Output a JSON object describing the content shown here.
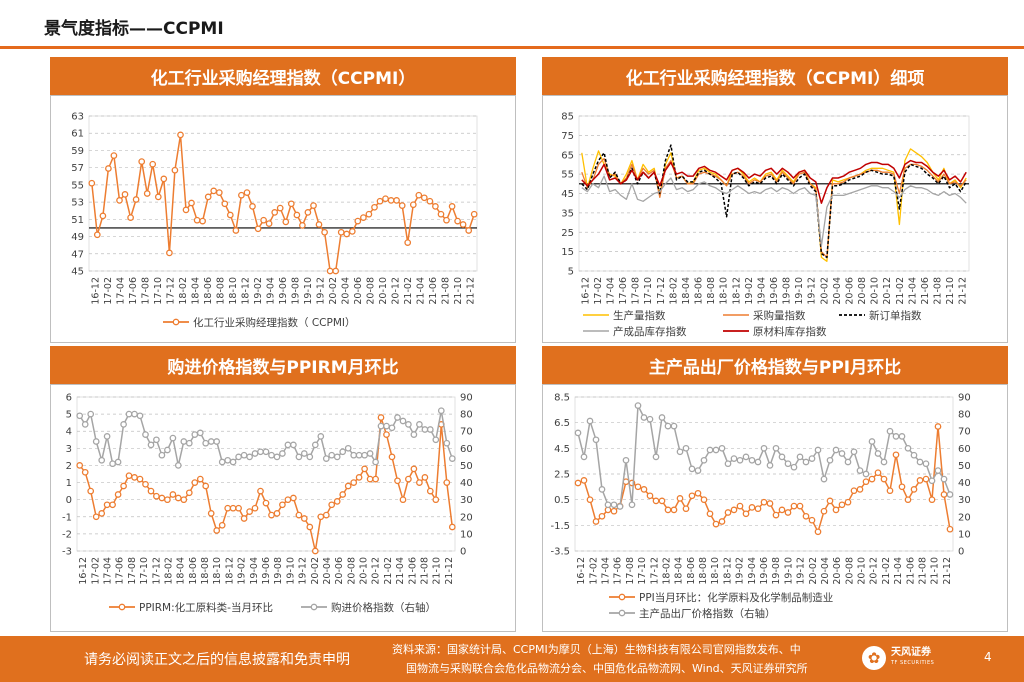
{
  "header": {
    "title": "景气度指标——CCPMI"
  },
  "footer": {
    "disclaimer": "请务必阅读正文之后的信息披露和免责申明",
    "source_line1": "资料来源：国家统计局、CCPMI为摩贝（上海）生物科技有限公司官网指数发布、中",
    "source_line2": "国物流与采购联合会危化品物流分会、中国危化品物流网、Wind、天风证券研究所",
    "logo_text": "天风证券",
    "logo_sub": "TF SECURITIES",
    "page_number": "4"
  },
  "colors": {
    "accent": "#e0701e",
    "orange_line": "#ed7d31",
    "gray_line": "#a5a5a5",
    "yellow_line": "#ffc000",
    "dark_red": "#c00000",
    "black": "#000000"
  },
  "month_ticks": [
    "16-12",
    "17-02",
    "17-04",
    "17-06",
    "17-08",
    "17-10",
    "17-12",
    "18-02",
    "18-04",
    "18-06",
    "18-08",
    "18-10",
    "18-12",
    "19-02",
    "19-04",
    "19-06",
    "19-08",
    "19-10",
    "19-12",
    "20-02",
    "20-04",
    "20-06",
    "20-08",
    "20-10",
    "20-12",
    "21-02",
    "21-04",
    "21-06",
    "21-08",
    "21-10",
    "21-12"
  ],
  "chart_data": [
    {
      "type": "line",
      "title": "化工行业采购经理指数（CCPMI）",
      "ylim": [
        45,
        63
      ],
      "yticks": [
        45,
        47,
        49,
        51,
        53,
        55,
        57,
        59,
        61,
        63
      ],
      "reference_line": 50,
      "legend": [
        {
          "label": "化工行业采购经理指数（ CCPMI）",
          "style": "orange-marker"
        }
      ],
      "series": [
        {
          "name": "化工行业采购经理指数（ CCPMI）",
          "values": [
            55.2,
            49.2,
            51.4,
            56.9,
            58.4,
            53.2,
            53.9,
            51.2,
            53.3,
            57.7,
            54,
            57.4,
            53.6,
            55.7,
            47.1,
            56.7,
            60.8,
            52.1,
            52.9,
            50.9,
            50.8,
            53.6,
            54.3,
            54.1,
            52.8,
            51.5,
            49.7,
            53.8,
            54.1,
            52.5,
            49.9,
            50.9,
            50.5,
            51.8,
            52.3,
            50.7,
            52.8,
            51.5,
            50.3,
            51.8,
            52.6,
            50.4,
            49.5,
            45,
            45,
            49.5,
            49.3,
            49.6,
            50.8,
            51.2,
            51.6,
            52.4,
            53.1,
            53.4,
            53.2,
            53.2,
            52.6,
            48.3,
            52.7,
            53.8,
            53.5,
            53.1,
            52.5,
            51.6,
            50.9,
            52.5,
            50.8,
            50.4,
            49.7,
            51.6
          ]
        }
      ]
    },
    {
      "type": "line",
      "title": "化工行业采购经理指数（CCPMI）细项",
      "ylim": [
        5,
        85
      ],
      "yticks": [
        5,
        15,
        25,
        35,
        45,
        55,
        65,
        75,
        85
      ],
      "reference_line": 50,
      "legend": [
        {
          "label": "生产量指数",
          "style": "yellow"
        },
        {
          "label": "采购量指数",
          "style": "orange"
        },
        {
          "label": "新订单指数",
          "style": "black-dash"
        },
        {
          "label": "产成品库存指数",
          "style": "gray"
        },
        {
          "label": "原材料库存指数",
          "style": "darkred"
        }
      ],
      "series": [
        {
          "name": "生产量指数",
          "values": [
            66,
            48,
            58,
            67,
            60,
            55,
            54,
            50,
            55,
            62,
            52,
            60,
            56,
            58,
            44,
            60,
            66,
            53,
            54,
            50,
            51,
            57,
            58,
            56,
            55,
            52,
            49,
            57,
            58,
            55,
            51,
            53,
            51,
            55,
            56,
            52,
            57,
            54,
            51,
            56,
            57,
            50,
            48,
            12,
            10,
            52,
            51,
            52,
            53,
            54,
            55,
            57,
            58,
            58,
            58,
            57,
            56,
            29,
            62,
            68,
            66,
            64,
            61,
            56,
            52,
            58,
            50,
            52,
            48,
            53
          ]
        },
        {
          "name": "采购量指数",
          "values": [
            56,
            48,
            52,
            60,
            63,
            54,
            55,
            50,
            53,
            60,
            52,
            58,
            55,
            57,
            43,
            58,
            62,
            53,
            54,
            50,
            50,
            55,
            56,
            55,
            54,
            52,
            49,
            55,
            56,
            54,
            50,
            52,
            51,
            54,
            55,
            51,
            56,
            53,
            50,
            55,
            56,
            50,
            47,
            15,
            12,
            50,
            50,
            51,
            53,
            54,
            55,
            56,
            57,
            57,
            56,
            56,
            55,
            45,
            58,
            60,
            60,
            59,
            57,
            54,
            51,
            55,
            50,
            51,
            49,
            52
          ]
        },
        {
          "name": "新订单指数",
          "values": [
            50,
            47,
            55,
            62,
            66,
            53,
            56,
            50,
            52,
            58,
            50,
            56,
            53,
            56,
            45,
            62,
            70,
            52,
            54,
            51,
            51,
            56,
            57,
            55,
            53,
            50,
            33,
            55,
            56,
            53,
            49,
            51,
            50,
            53,
            54,
            50,
            55,
            52,
            49,
            53,
            55,
            49,
            46,
            14,
            12,
            49,
            49,
            50,
            52,
            53,
            54,
            56,
            57,
            56,
            55,
            55,
            54,
            37,
            56,
            60,
            59,
            58,
            55,
            53,
            50,
            54,
            48,
            50,
            46,
            51
          ]
        },
        {
          "name": "产成品库存指数",
          "values": [
            48,
            46,
            50,
            48,
            54,
            46,
            47,
            44,
            42,
            50,
            42,
            41,
            43,
            45,
            46,
            50,
            53,
            47,
            48,
            46,
            47,
            50,
            51,
            49,
            48,
            46,
            45,
            47,
            49,
            47,
            45,
            46,
            45,
            47,
            48,
            46,
            48,
            47,
            45,
            47,
            48,
            45,
            44,
            18,
            38,
            44,
            44,
            44,
            45,
            46,
            47,
            48,
            49,
            49,
            48,
            48,
            46,
            43,
            47,
            49,
            48,
            48,
            47,
            45,
            44,
            46,
            44,
            45,
            43,
            40
          ]
        },
        {
          "name": "原材料库存指数",
          "values": [
            52,
            49,
            52,
            55,
            60,
            52,
            53,
            50,
            52,
            57,
            52,
            56,
            53,
            56,
            49,
            57,
            61,
            55,
            56,
            54,
            54,
            58,
            59,
            57,
            56,
            54,
            52,
            57,
            58,
            56,
            53,
            55,
            54,
            57,
            58,
            55,
            58,
            56,
            53,
            56,
            57,
            53,
            51,
            40,
            48,
            53,
            53,
            54,
            56,
            57,
            58,
            60,
            61,
            61,
            60,
            60,
            58,
            53,
            60,
            62,
            61,
            61,
            59,
            56,
            54,
            57,
            52,
            54,
            51,
            56
          ]
        }
      ]
    },
    {
      "type": "line",
      "title": "购进价格指数与PPIRM月环比",
      "ylim": [
        -3,
        6
      ],
      "yticks": [
        -3,
        -2,
        -1,
        0,
        1,
        2,
        3,
        4,
        5,
        6
      ],
      "y2lim": [
        0,
        90
      ],
      "y2ticks": [
        0,
        10,
        20,
        30,
        40,
        50,
        60,
        70,
        80,
        90
      ],
      "legend": [
        {
          "label": "PPIRM:化工原料类-当月环比",
          "style": "orange-marker"
        },
        {
          "label": "购进价格指数（右轴）",
          "style": "gray-marker"
        }
      ],
      "series": [
        {
          "name": "PPIRM:化工原料类-当月环比",
          "axis": "left",
          "values": [
            2,
            1.6,
            0.5,
            -1,
            -0.8,
            -0.3,
            -0.3,
            0.3,
            0.8,
            1.4,
            1.3,
            1.2,
            0.9,
            0.5,
            0.2,
            0.1,
            0,
            0.3,
            0.1,
            0,
            0.4,
            1,
            1.2,
            0.8,
            -0.8,
            -1.8,
            -1.5,
            -0.5,
            -0.5,
            -0.5,
            -1.1,
            -0.7,
            -0.5,
            0.5,
            -0.2,
            -0.9,
            -0.8,
            -0.3,
            0,
            0.1,
            -0.9,
            -1.1,
            -1.6,
            -3,
            -1,
            -0.9,
            -0.3,
            -0.1,
            0.3,
            0.8,
            1,
            1.3,
            1.8,
            1.2,
            1.2,
            4.8,
            3.8,
            2.5,
            1.1,
            0,
            1.2,
            1.8,
            1,
            1.3,
            0.5,
            0,
            4.4,
            1,
            -1.6
          ]
        },
        {
          "name": "购进价格指数（右轴）",
          "axis": "right",
          "values": [
            79,
            74,
            80,
            64,
            53,
            67,
            51,
            52,
            74,
            80,
            80,
            79,
            68,
            62,
            65,
            56,
            59,
            66,
            50,
            64,
            63,
            68,
            69,
            63,
            64,
            64,
            52,
            53,
            52,
            55,
            56,
            55,
            57,
            58,
            58,
            56,
            55,
            57,
            62,
            62,
            55,
            57,
            55,
            62,
            67,
            54,
            56,
            55,
            58,
            60,
            56,
            56,
            56,
            57,
            52,
            73,
            73,
            72,
            78,
            76,
            74,
            68,
            74,
            71,
            71,
            65,
            82,
            63,
            54
          ]
        }
      ]
    },
    {
      "type": "line",
      "title": "主产品出厂价格指数与PPI月环比",
      "ylim": [
        -3.5,
        8.5
      ],
      "yticks": [
        -3.5,
        -1.5,
        0.5,
        2.5,
        4.5,
        6.5,
        8.5
      ],
      "y2lim": [
        0,
        90
      ],
      "y2ticks": [
        0,
        10,
        20,
        30,
        40,
        50,
        60,
        70,
        80,
        90
      ],
      "legend": [
        {
          "label": "PPI当月环比：化学原料及化学制品制造业",
          "style": "orange-marker"
        },
        {
          "label": "主产品出厂价格指数（右轴）",
          "style": "gray-marker"
        }
      ],
      "series": [
        {
          "name": "PPI当月环比：化学原料及化学制品制造业",
          "axis": "left",
          "values": [
            1.8,
            2,
            0.5,
            -1.2,
            -0.8,
            -0.3,
            -0.4,
            0,
            1.9,
            1.8,
            1.5,
            1.3,
            0.8,
            0.4,
            0.4,
            -0.3,
            -0.3,
            0.6,
            -0.2,
            0.8,
            1,
            0.5,
            -0.6,
            -1.4,
            -1.2,
            -0.5,
            -0.3,
            0,
            -0.6,
            -0.1,
            -0.2,
            0.3,
            0.2,
            -0.7,
            -0.3,
            -0.5,
            0,
            0,
            -0.8,
            -1.1,
            -2,
            -0.4,
            0.4,
            -0.3,
            0.1,
            0.3,
            1.2,
            1.3,
            1.9,
            2.1,
            2.6,
            2.1,
            1.2,
            4,
            1.5,
            0.5,
            1.3,
            2,
            2.1,
            0.5,
            6.2,
            0.9,
            -1.8
          ]
        },
        {
          "name": "主产品出厂价格指数（右轴）",
          "axis": "right",
          "values": [
            69,
            55,
            76,
            65,
            36,
            27,
            27,
            26,
            53,
            27,
            85,
            78,
            77,
            55,
            78,
            73,
            73,
            58,
            60,
            48,
            47,
            53,
            59,
            59,
            60,
            51,
            54,
            53,
            55,
            53,
            52,
            60,
            50,
            60,
            55,
            51,
            49,
            55,
            52,
            54,
            59,
            42,
            53,
            59,
            57,
            52,
            58,
            47,
            45,
            64,
            57,
            52,
            70,
            67,
            67,
            60,
            56,
            52,
            51,
            41,
            47,
            42,
            33
          ]
        }
      ]
    }
  ]
}
